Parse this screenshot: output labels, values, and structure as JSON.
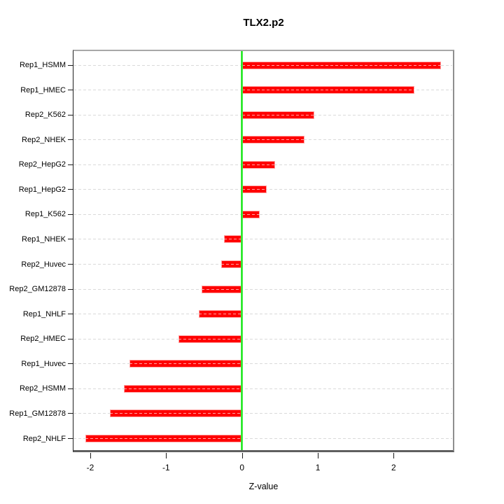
{
  "figure": {
    "title": "TLX2.p2",
    "xlabel": "Z-value"
  },
  "chart_data": {
    "type": "bar",
    "orientation": "horizontal",
    "title": "TLX2.p2",
    "xlabel": "Z-value",
    "ylabel": "",
    "categories": [
      "Rep1_HSMM",
      "Rep1_HMEC",
      "Rep2_K562",
      "Rep2_NHEK",
      "Rep2_HepG2",
      "Rep1_HepG2",
      "Rep1_K562",
      "Rep1_NHEK",
      "Rep2_Huvec",
      "Rep2_GM12878",
      "Rep1_NHLF",
      "Rep2_HMEC",
      "Rep1_Huvec",
      "Rep2_HSMM",
      "Rep1_GM12878",
      "Rep2_NHLF"
    ],
    "values": [
      2.62,
      2.27,
      0.95,
      0.82,
      0.44,
      0.33,
      0.23,
      -0.24,
      -0.27,
      -0.53,
      -0.57,
      -0.84,
      -1.48,
      -1.56,
      -1.74,
      -2.06
    ],
    "x_tick_labels": [
      "-2",
      "-1",
      "0",
      "1",
      "2"
    ],
    "x_tick_values": [
      -2,
      -1,
      0,
      1,
      2
    ],
    "xlim": [
      -2.23,
      2.8
    ],
    "legend": "none",
    "grid": "horizontal-dashed",
    "colors": {
      "bar_fill": "#ff0000",
      "bar_border": "#ffa3a3",
      "zero_line": "#00e400",
      "zero_line_edge": "#b4f7b4",
      "grid": "#d9d9d9",
      "box_border": "#8f8f8f",
      "axis_text": "#000000",
      "background": "#ffffff"
    }
  }
}
